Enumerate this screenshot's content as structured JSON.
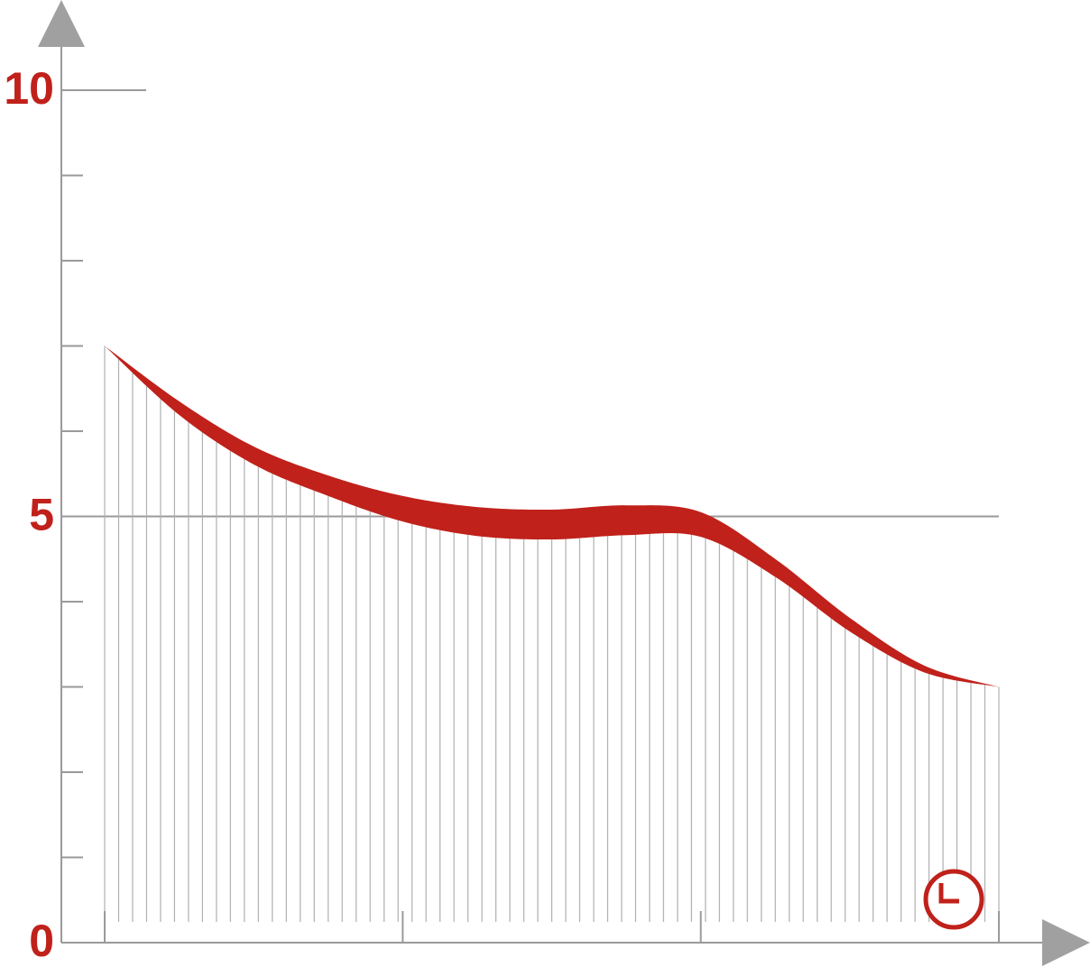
{
  "chart_data": {
    "type": "band",
    "x": [
      0,
      0.25,
      0.5,
      0.75,
      1,
      1.25,
      1.5,
      1.75,
      2,
      2.25,
      2.5,
      2.75,
      3
    ],
    "series": [
      {
        "color": "#c0211b",
        "values": [
          7.0,
          6.35,
          5.82,
          5.48,
          5.24,
          5.11,
          5.08,
          5.13,
          5.05,
          4.5,
          3.81,
          3.25,
          3.0
        ]
      },
      {
        "color": "#c0211b",
        "values": [
          7.0,
          6.19,
          5.61,
          5.24,
          4.94,
          4.77,
          4.73,
          4.78,
          4.76,
          4.29,
          3.65,
          3.17,
          3.0
        ]
      }
    ],
    "xlim": [
      0,
      3
    ],
    "xticks": [
      0,
      1,
      2,
      3
    ],
    "ylim": [
      0,
      10
    ],
    "yticks": [
      0,
      5,
      10
    ],
    "yminor_ticks": [
      1,
      2,
      3,
      4,
      6,
      7,
      8,
      9
    ],
    "grid": true
  }
}
